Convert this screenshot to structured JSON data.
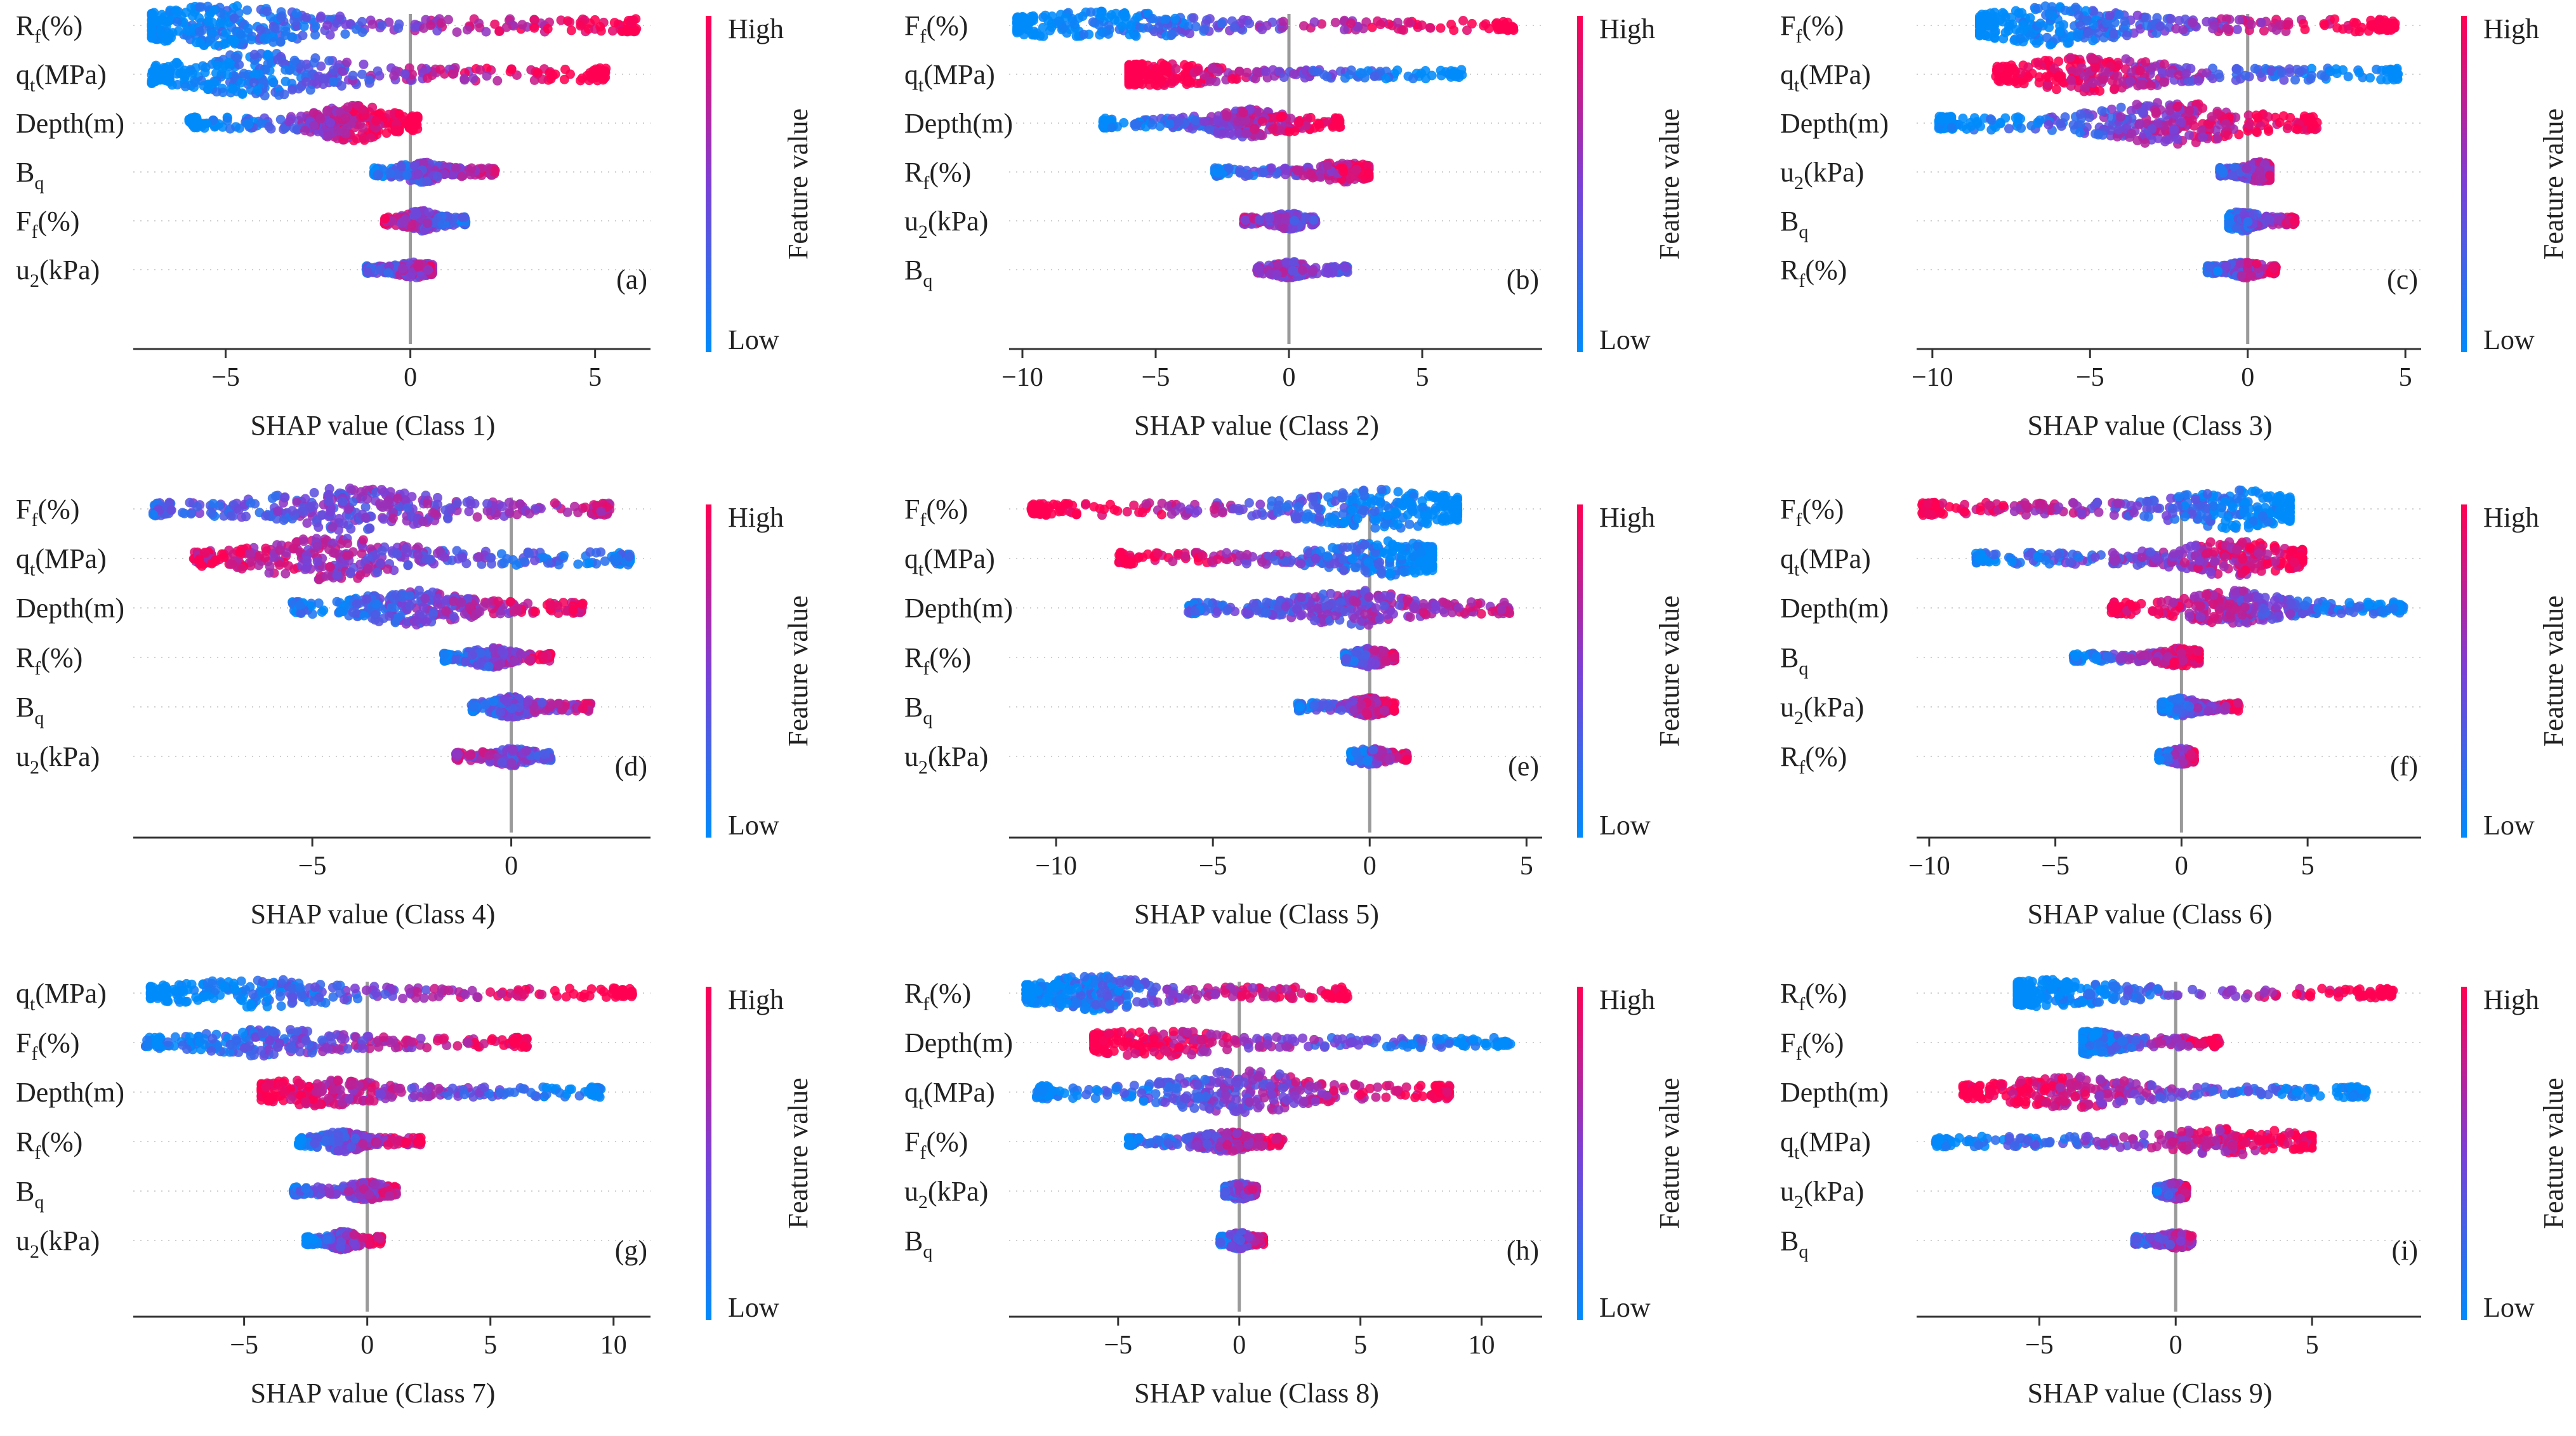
{
  "colorbar": {
    "high_label": "High",
    "low_label": "Low",
    "title": "Feature value",
    "high_color": "#ff0052",
    "mid_color": "#7b3fd6",
    "low_color": "#008bfb"
  },
  "chart_data": [
    {
      "type": "scatter",
      "panel_label": "(a)",
      "xlabel": "SHAP value  (Class 1)",
      "xlim": [
        -7.5,
        6.5
      ],
      "ticks": [
        -5,
        0,
        5
      ],
      "features": [
        {
          "name": "Rf(%)",
          "base": "R",
          "sub": "f",
          "tail": "(%)",
          "min": -7,
          "max": 6.2,
          "hotspot": -5,
          "hot": 0.8,
          "trend": 0.8,
          "width": 1.0
        },
        {
          "name": "qt(MPa)",
          "base": "q",
          "sub": "t",
          "tail": "(MPa)",
          "min": -7,
          "max": 5.3,
          "hotspot": -4,
          "hot": 0.75,
          "trend": 0.9,
          "width": 1.0
        },
        {
          "name": "Depth(m)",
          "base": "Depth(m)",
          "sub": "",
          "tail": "",
          "min": -6,
          "max": 0.2,
          "hotspot": -1.5,
          "hot": 0.6,
          "trend": 0.9,
          "width": 0.8
        },
        {
          "name": "Bq",
          "base": "B",
          "sub": "q",
          "tail": "",
          "min": -1,
          "max": 2.3,
          "hotspot": 0.3,
          "hot": 0.4,
          "trend": 0.5,
          "width": 0.4
        },
        {
          "name": "Ff(%)",
          "base": "F",
          "sub": "f",
          "tail": "(%)",
          "min": -0.7,
          "max": 1.5,
          "hotspot": 0.3,
          "hot": 0.4,
          "trend": -0.4,
          "width": 0.4
        },
        {
          "name": "u2(kPa)",
          "base": "u",
          "sub": "2",
          "tail": "(kPa)",
          "min": -1.2,
          "max": 0.6,
          "hotspot": 0.2,
          "hot": 0.3,
          "trend": 0.3,
          "width": 0.3
        }
      ]
    },
    {
      "type": "scatter",
      "panel_label": "(b)",
      "xlabel": "SHAP value  (Class 2)",
      "xlim": [
        -10.5,
        9.5
      ],
      "ticks": [
        -10,
        -5,
        0,
        5
      ],
      "features": [
        {
          "name": "Ff(%)",
          "base": "F",
          "sub": "f",
          "tail": "(%)",
          "min": -10.2,
          "max": 8.5,
          "hotspot": -7,
          "hot": 0.6,
          "trend": 0.95,
          "width": 0.6
        },
        {
          "name": "qt(MPa)",
          "base": "q",
          "sub": "t",
          "tail": "(MPa)",
          "min": -6,
          "max": 6.5,
          "hotspot": -5,
          "hot": 0.7,
          "trend": -0.95,
          "width": 0.5
        },
        {
          "name": "Depth(m)",
          "base": "Depth(m)",
          "sub": "",
          "tail": "",
          "min": -7,
          "max": 2,
          "hotspot": -1.5,
          "hot": 0.6,
          "trend": 0.8,
          "width": 0.6
        },
        {
          "name": "Rf(%)",
          "base": "R",
          "sub": "f",
          "tail": "(%)",
          "min": -2.8,
          "max": 3,
          "hotspot": 2,
          "hot": 0.4,
          "trend": 0.6,
          "width": 0.4
        },
        {
          "name": "u2(kPa)",
          "base": "u",
          "sub": "2",
          "tail": "(kPa)",
          "min": -1.7,
          "max": 1,
          "hotspot": 0,
          "hot": 0.3,
          "trend": -0.2,
          "width": 0.3
        },
        {
          "name": "Bq",
          "base": "B",
          "sub": "q",
          "tail": "",
          "min": -1.2,
          "max": 2.2,
          "hotspot": 0,
          "hot": 0.3,
          "trend": -0.2,
          "width": 0.3
        }
      ]
    },
    {
      "type": "scatter",
      "panel_label": "(c)",
      "xlabel": "SHAP value  (Class 3)",
      "xlim": [
        -10.5,
        5.5
      ],
      "ticks": [
        -10,
        -5,
        0,
        5
      ],
      "features": [
        {
          "name": "Ff(%)",
          "base": "F",
          "sub": "f",
          "tail": "(%)",
          "min": -8.5,
          "max": 4.7,
          "hotspot": -6,
          "hot": 0.7,
          "trend": 0.9,
          "width": 0.9
        },
        {
          "name": "qt(MPa)",
          "base": "q",
          "sub": "t",
          "tail": "(MPa)",
          "min": -8,
          "max": 4.8,
          "hotspot": -5,
          "hot": 0.7,
          "trend": -0.9,
          "width": 0.8
        },
        {
          "name": "Depth(m)",
          "base": "Depth(m)",
          "sub": "",
          "tail": "",
          "min": -9.8,
          "max": 2.2,
          "hotspot": -2.5,
          "hot": 0.8,
          "trend": 0.8,
          "width": 1.0
        },
        {
          "name": "u2(kPa)",
          "base": "u",
          "sub": "2",
          "tail": "(kPa)",
          "min": -0.9,
          "max": 0.7,
          "hotspot": 0.4,
          "hot": 0.3,
          "trend": 0.3,
          "width": 0.4
        },
        {
          "name": "Bq",
          "base": "B",
          "sub": "q",
          "tail": "",
          "min": -0.6,
          "max": 1.5,
          "hotspot": -0.2,
          "hot": 0.3,
          "trend": 0.5,
          "width": 0.4
        },
        {
          "name": "Rf(%)",
          "base": "R",
          "sub": "f",
          "tail": "(%)",
          "min": -1.3,
          "max": 0.9,
          "hotspot": -0.1,
          "hot": 0.3,
          "trend": 0.6,
          "width": 0.3
        }
      ]
    },
    {
      "type": "scatter",
      "panel_label": "(d)",
      "xlabel": "SHAP value  (Class 4)",
      "xlim": [
        -9.5,
        3.5
      ],
      "ticks": [
        -5,
        0
      ],
      "features": [
        {
          "name": "Ff(%)",
          "base": "F",
          "sub": "f",
          "tail": "(%)",
          "min": -9,
          "max": 2.5,
          "hotspot": -4,
          "hot": 0.9,
          "trend": 0.3,
          "width": 1.0
        },
        {
          "name": "qt(MPa)",
          "base": "q",
          "sub": "t",
          "tail": "(MPa)",
          "min": -8,
          "max": 3,
          "hotspot": -4.5,
          "hot": 0.9,
          "trend": -0.5,
          "width": 1.0
        },
        {
          "name": "Depth(m)",
          "base": "Depth(m)",
          "sub": "",
          "tail": "",
          "min": -5.5,
          "max": 1.8,
          "hotspot": -2.5,
          "hot": 0.7,
          "trend": 0.6,
          "width": 0.8
        },
        {
          "name": "Rf(%)",
          "base": "R",
          "sub": "f",
          "tail": "(%)",
          "min": -1.7,
          "max": 1,
          "hotspot": -0.5,
          "hot": 0.4,
          "trend": 0.6,
          "width": 0.4
        },
        {
          "name": "Bq",
          "base": "B",
          "sub": "q",
          "tail": "",
          "min": -1,
          "max": 2,
          "hotspot": 0,
          "hot": 0.4,
          "trend": 0.4,
          "width": 0.4
        },
        {
          "name": "u2(kPa)",
          "base": "u",
          "sub": "2",
          "tail": "(kPa)",
          "min": -1.4,
          "max": 1,
          "hotspot": 0,
          "hot": 0.4,
          "trend": -0.3,
          "width": 0.35
        }
      ]
    },
    {
      "type": "scatter",
      "panel_label": "(e)",
      "xlabel": "SHAP value  (Class 5)",
      "xlim": [
        -11.5,
        5.5
      ],
      "ticks": [
        -10,
        -5,
        0,
        5
      ],
      "features": [
        {
          "name": "Ff(%)",
          "base": "F",
          "sub": "f",
          "tail": "(%)",
          "min": -10.8,
          "max": 2.8,
          "hotspot": 0.5,
          "hot": 0.7,
          "trend": -0.9,
          "width": 0.9
        },
        {
          "name": "qt(MPa)",
          "base": "q",
          "sub": "t",
          "tail": "(MPa)",
          "min": -8,
          "max": 2,
          "hotspot": 0.5,
          "hot": 0.7,
          "trend": -0.8,
          "width": 0.8
        },
        {
          "name": "Depth(m)",
          "base": "Depth(m)",
          "sub": "",
          "tail": "",
          "min": -5.8,
          "max": 4.5,
          "hotspot": -0.5,
          "hot": 0.7,
          "trend": 0.4,
          "width": 0.8
        },
        {
          "name": "Rf(%)",
          "base": "R",
          "sub": "f",
          "tail": "(%)",
          "min": -0.8,
          "max": 0.8,
          "hotspot": 0,
          "hot": 0.3,
          "trend": 0.4,
          "width": 0.35
        },
        {
          "name": "Bq",
          "base": "B",
          "sub": "q",
          "tail": "",
          "min": -2.3,
          "max": 0.8,
          "hotspot": 0,
          "hot": 0.3,
          "trend": 0.6,
          "width": 0.35
        },
        {
          "name": "u2(kPa)",
          "base": "u",
          "sub": "2",
          "tail": "(kPa)",
          "min": -0.6,
          "max": 1.2,
          "hotspot": 0,
          "hot": 0.3,
          "trend": 0.6,
          "width": 0.3
        }
      ]
    },
    {
      "type": "scatter",
      "panel_label": "(f)",
      "xlabel": "SHAP value  (Class 6)",
      "xlim": [
        -10.5,
        9.5
      ],
      "ticks": [
        -10,
        -5,
        0,
        5
      ],
      "features": [
        {
          "name": "Ff(%)",
          "base": "F",
          "sub": "f",
          "tail": "(%)",
          "min": -10.3,
          "max": 4.3,
          "hotspot": 2,
          "hot": 0.7,
          "trend": -0.8,
          "width": 0.9
        },
        {
          "name": "qt(MPa)",
          "base": "q",
          "sub": "t",
          "tail": "(MPa)",
          "min": -8.2,
          "max": 4.8,
          "hotspot": 2,
          "hot": 0.7,
          "trend": 0.6,
          "width": 0.8
        },
        {
          "name": "Depth(m)",
          "base": "Depth(m)",
          "sub": "",
          "tail": "",
          "min": -2.8,
          "max": 8.8,
          "hotspot": 2,
          "hot": 0.7,
          "trend": -0.7,
          "width": 0.8
        },
        {
          "name": "Bq",
          "base": "B",
          "sub": "q",
          "tail": "",
          "min": -4.3,
          "max": 0.7,
          "hotspot": 0,
          "hot": 0.3,
          "trend": 0.7,
          "width": 0.35
        },
        {
          "name": "u2(kPa)",
          "base": "u",
          "sub": "2",
          "tail": "(kPa)",
          "min": -0.8,
          "max": 2.3,
          "hotspot": 0,
          "hot": 0.3,
          "trend": 0.6,
          "width": 0.35
        },
        {
          "name": "Rf(%)",
          "base": "R",
          "sub": "f",
          "tail": "(%)",
          "min": -0.9,
          "max": 0.5,
          "hotspot": 0,
          "hot": 0.3,
          "trend": 0.6,
          "width": 0.3
        }
      ]
    },
    {
      "type": "scatter",
      "panel_label": "(g)",
      "xlabel": "SHAP value  (Class 7)",
      "xlim": [
        -9.5,
        11.5
      ],
      "ticks": [
        -5,
        0,
        5,
        10
      ],
      "features": [
        {
          "name": "qt(MPa)",
          "base": "q",
          "sub": "t",
          "tail": "(MPa)",
          "min": -8.8,
          "max": 10.8,
          "hotspot": -4.5,
          "hot": 0.6,
          "trend": 0.95,
          "width": 0.6
        },
        {
          "name": "Ff(%)",
          "base": "F",
          "sub": "f",
          "tail": "(%)",
          "min": -9,
          "max": 6.5,
          "hotspot": -4,
          "hot": 0.6,
          "trend": 0.7,
          "width": 0.6
        },
        {
          "name": "Depth(m)",
          "base": "Depth(m)",
          "sub": "",
          "tail": "",
          "min": -4.3,
          "max": 9.6,
          "hotspot": -2,
          "hot": 0.6,
          "trend": -0.7,
          "width": 0.6
        },
        {
          "name": "Rf(%)",
          "base": "R",
          "sub": "f",
          "tail": "(%)",
          "min": -2.8,
          "max": 2.2,
          "hotspot": -1,
          "hot": 0.4,
          "trend": 0.6,
          "width": 0.4
        },
        {
          "name": "Bq",
          "base": "B",
          "sub": "q",
          "tail": "",
          "min": -3,
          "max": 1.2,
          "hotspot": 0,
          "hot": 0.3,
          "trend": 0.4,
          "width": 0.35
        },
        {
          "name": "u2(kPa)",
          "base": "u",
          "sub": "2",
          "tail": "(kPa)",
          "min": -2.5,
          "max": 0.6,
          "hotspot": -1,
          "hot": 0.4,
          "trend": 0.6,
          "width": 0.35
        }
      ]
    },
    {
      "type": "scatter",
      "panel_label": "(h)",
      "xlabel": "SHAP value  (Class 8)",
      "xlim": [
        -9.5,
        12.5
      ],
      "ticks": [
        -5,
        0,
        5,
        10
      ],
      "features": [
        {
          "name": "Rf(%)",
          "base": "R",
          "sub": "f",
          "tail": "(%)",
          "min": -8.8,
          "max": 4.5,
          "hotspot": -6,
          "hot": 0.7,
          "trend": 0.8,
          "width": 0.8
        },
        {
          "name": "Depth(m)",
          "base": "Depth(m)",
          "sub": "",
          "tail": "",
          "min": -6,
          "max": 11.2,
          "hotspot": -3.5,
          "hot": 0.6,
          "trend": -0.8,
          "width": 0.6
        },
        {
          "name": "qt(MPa)",
          "base": "q",
          "sub": "t",
          "tail": "(MPa)",
          "min": -8.4,
          "max": 8.7,
          "hotspot": 0,
          "hot": 0.8,
          "trend": 0.7,
          "width": 1.0
        },
        {
          "name": "Ff(%)",
          "base": "F",
          "sub": "f",
          "tail": "(%)",
          "min": -4.6,
          "max": 1.8,
          "hotspot": -0.5,
          "hot": 0.4,
          "trend": 0.6,
          "width": 0.4
        },
        {
          "name": "u2(kPa)",
          "base": "u",
          "sub": "2",
          "tail": "(kPa)",
          "min": -0.6,
          "max": 0.7,
          "hotspot": 0,
          "hot": 0.3,
          "trend": 0.3,
          "width": 0.3
        },
        {
          "name": "Bq",
          "base": "B",
          "sub": "q",
          "tail": "",
          "min": -0.8,
          "max": 1,
          "hotspot": 0,
          "hot": 0.3,
          "trend": 0.5,
          "width": 0.3
        }
      ]
    },
    {
      "type": "scatter",
      "panel_label": "(i)",
      "xlabel": "SHAP value  (Class 9)",
      "xlim": [
        -9.5,
        9
      ],
      "ticks": [
        -5,
        0,
        5
      ],
      "features": [
        {
          "name": "Rf(%)",
          "base": "R",
          "sub": "f",
          "tail": "(%)",
          "min": -5.8,
          "max": 8,
          "hotspot": -4.5,
          "hot": 0.6,
          "trend": 0.9,
          "width": 0.6
        },
        {
          "name": "Ff(%)",
          "base": "F",
          "sub": "f",
          "tail": "(%)",
          "min": -3.4,
          "max": 1.6,
          "hotspot": -3,
          "hot": 0.5,
          "trend": 0.7,
          "width": 0.5
        },
        {
          "name": "Depth(m)",
          "base": "Depth(m)",
          "sub": "",
          "tail": "",
          "min": -7.8,
          "max": 7,
          "hotspot": -4,
          "hot": 0.7,
          "trend": -0.8,
          "width": 0.7
        },
        {
          "name": "qt(MPa)",
          "base": "q",
          "sub": "t",
          "tail": "(MPa)",
          "min": -8.8,
          "max": 5,
          "hotspot": 2,
          "hot": 0.6,
          "trend": 0.7,
          "width": 0.6
        },
        {
          "name": "u2(kPa)",
          "base": "u",
          "sub": "2",
          "tail": "(kPa)",
          "min": -0.7,
          "max": 0.4,
          "hotspot": 0,
          "hot": 0.3,
          "trend": 0.4,
          "width": 0.3
        },
        {
          "name": "Bq",
          "base": "B",
          "sub": "q",
          "tail": "",
          "min": -1.5,
          "max": 0.6,
          "hotspot": 0,
          "hot": 0.3,
          "trend": 0.3,
          "width": 0.3
        }
      ]
    }
  ]
}
